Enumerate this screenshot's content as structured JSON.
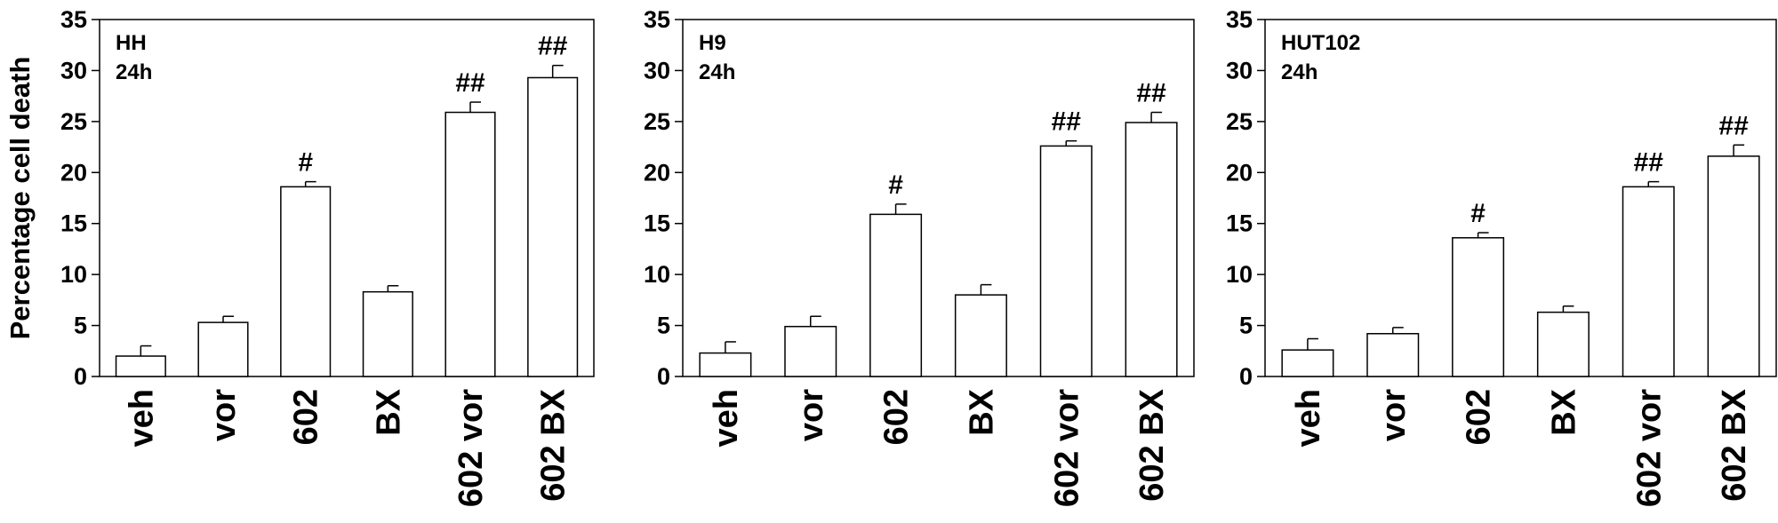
{
  "chart_data": [
    {
      "type": "bar",
      "title": "HH",
      "subtitle": "24h",
      "ylabel": "Percentage cell death",
      "ylim": [
        0,
        35
      ],
      "yticks": [
        0,
        5,
        10,
        15,
        20,
        25,
        30,
        35
      ],
      "categories": [
        "veh",
        "vor",
        "602",
        "BX",
        "602 vor",
        "602 BX"
      ],
      "values": [
        2.0,
        5.3,
        18.6,
        8.3,
        25.9,
        29.3
      ],
      "errors": [
        1.0,
        0.6,
        0.5,
        0.6,
        1.0,
        1.2
      ],
      "annotations": [
        "",
        "",
        "#",
        "",
        "##",
        "##"
      ]
    },
    {
      "type": "bar",
      "title": "H9",
      "subtitle": "24h",
      "ylabel": "",
      "ylim": [
        0,
        35
      ],
      "yticks": [
        0,
        5,
        10,
        15,
        20,
        25,
        30,
        35
      ],
      "categories": [
        "veh",
        "vor",
        "602",
        "BX",
        "602 vor",
        "602 BX"
      ],
      "values": [
        2.3,
        4.9,
        15.9,
        8.0,
        22.6,
        24.9
      ],
      "errors": [
        1.1,
        1.0,
        1.0,
        1.0,
        0.5,
        1.0
      ],
      "annotations": [
        "",
        "",
        "#",
        "",
        "##",
        "##"
      ]
    },
    {
      "type": "bar",
      "title": "HUT102",
      "subtitle": "24h",
      "ylabel": "",
      "ylim": [
        0,
        35
      ],
      "yticks": [
        0,
        5,
        10,
        15,
        20,
        25,
        30,
        35
      ],
      "categories": [
        "veh",
        "vor",
        "602",
        "BX",
        "602 vor",
        "602 BX"
      ],
      "values": [
        2.6,
        4.2,
        13.6,
        6.3,
        18.6,
        21.6
      ],
      "errors": [
        1.1,
        0.6,
        0.5,
        0.6,
        0.5,
        1.1
      ],
      "annotations": [
        "",
        "",
        "#",
        "",
        "##",
        "##"
      ]
    }
  ]
}
